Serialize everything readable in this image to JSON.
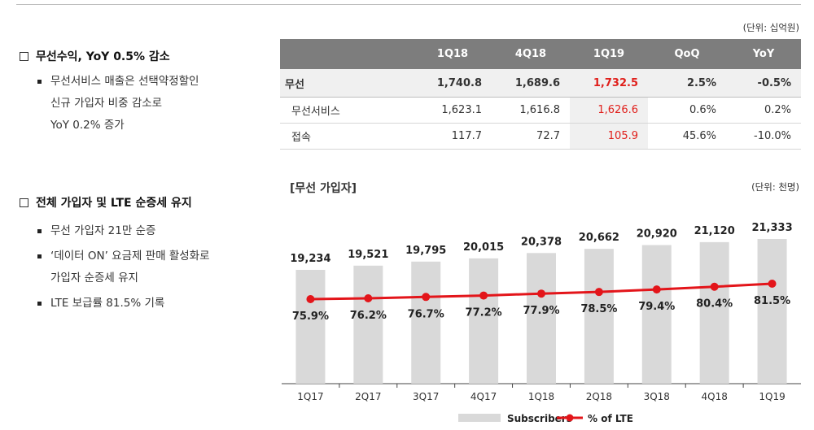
{
  "left": {
    "section1": {
      "heading": "무선수익, YoY 0.5% 감소",
      "bullets": [
        "무선서비스 매출은 선택약정할인 신규 가입자 비중 감소로 YoY 0.2% 증가"
      ],
      "bullet_lines": [
        [
          "무선서비스 매출은 선택약정할인",
          "신규 가입자 비중 감소로",
          "YoY 0.2% 증가"
        ]
      ]
    },
    "section2": {
      "heading": "전체 가입자 및 LTE 순증세 유지",
      "bullets": [
        [
          "무선 가입자 21만 순증"
        ],
        [
          "‘데이터 ON’ 요금제 판매 활성화로",
          "가입자 순증세 유지"
        ],
        [
          "LTE 보급률 81.5% 기록"
        ]
      ]
    }
  },
  "table": {
    "unit": "(단위: 십억원)",
    "headers": [
      "",
      "1Q18",
      "4Q18",
      "1Q19",
      "QoQ",
      "YoY"
    ],
    "rows": [
      {
        "label": "무선",
        "values": [
          "1,740.8",
          "1,689.6",
          "1,732.5",
          "2.5%",
          "-0.5%"
        ]
      },
      {
        "label": "무선서비스",
        "values": [
          "1,623.1",
          "1,616.8",
          "1,626.6",
          "0.6%",
          "0.2%"
        ]
      },
      {
        "label": "접속",
        "values": [
          "117.7",
          "72.7",
          "105.9",
          "45.6%",
          "-10.0%"
        ]
      }
    ]
  },
  "chart_title": "[무선 가입자]",
  "chart_unit": "(단위: 천명)",
  "colors": {
    "bar": "#d9d9d9",
    "line": "#e3151a",
    "highlight": "#e0201c",
    "header": "#7d7d7d"
  },
  "chart_data": {
    "type": "bar",
    "categories": [
      "1Q17",
      "2Q17",
      "3Q17",
      "4Q17",
      "1Q18",
      "2Q18",
      "3Q18",
      "4Q18",
      "1Q19"
    ],
    "series": [
      {
        "name": "Subscribers",
        "type": "bar",
        "values": [
          19234,
          19521,
          19795,
          20015,
          20378,
          20662,
          20920,
          21120,
          21333
        ],
        "labels": [
          "19,234",
          "19,521",
          "19,795",
          "20,015",
          "20,378",
          "20,662",
          "20,920",
          "21,120",
          "21,333"
        ]
      },
      {
        "name": "% of LTE",
        "type": "line",
        "values": [
          75.9,
          76.2,
          76.7,
          77.2,
          77.9,
          78.5,
          79.4,
          80.4,
          81.5
        ],
        "labels": [
          "75.9%",
          "76.2%",
          "76.7%",
          "77.2%",
          "77.9%",
          "78.5%",
          "79.4%",
          "80.4%",
          "81.5%"
        ]
      }
    ],
    "legend": "bottom-center",
    "grid": false
  }
}
